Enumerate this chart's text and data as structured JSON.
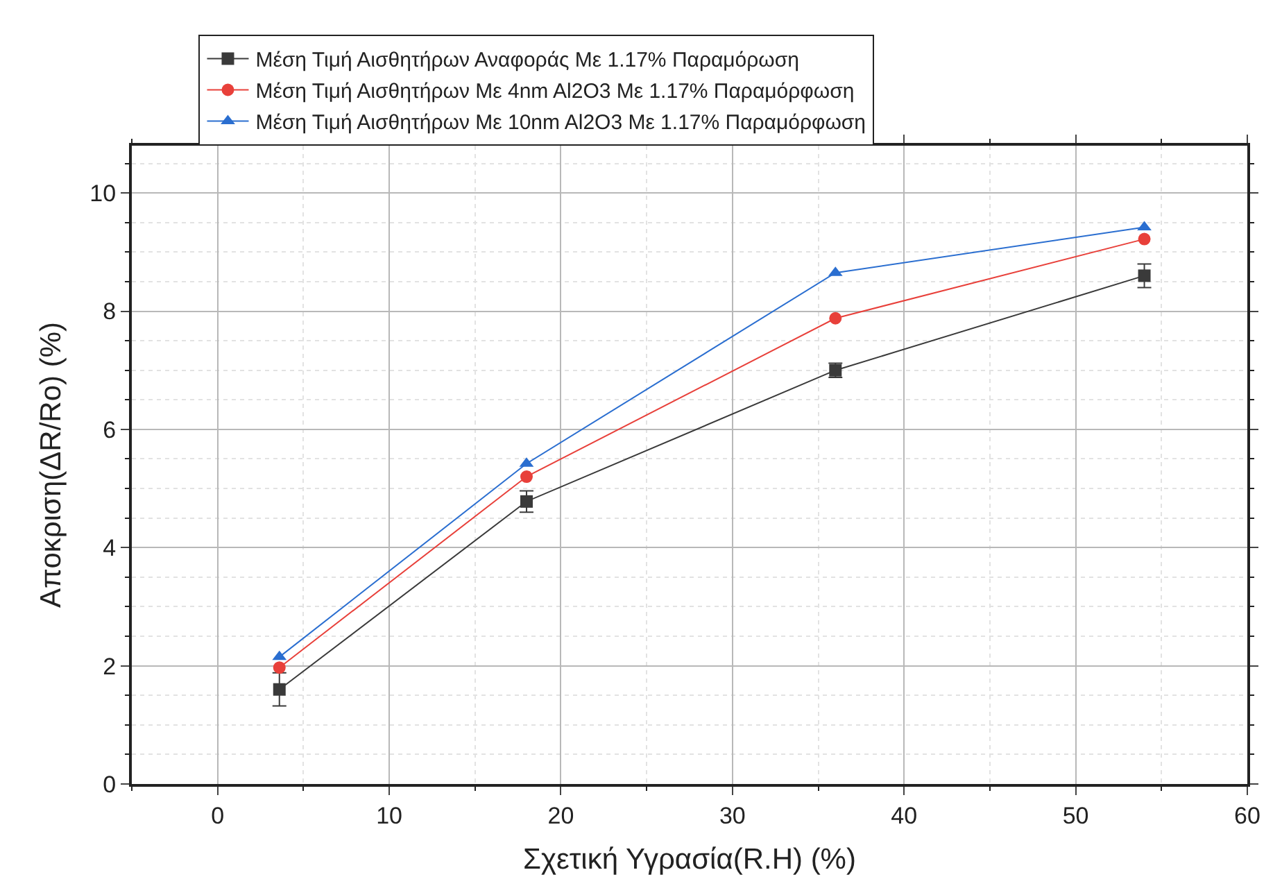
{
  "chart_data": {
    "type": "line",
    "xlabel": "Σχετική Υγρασία(R.H) (%)",
    "ylabel": "Αποκριση(ΔR/Ro) (%)",
    "x": [
      3.6,
      18,
      36,
      54
    ],
    "series": [
      {
        "name": "Μέση Τιμή Αισθητήρων Αναφοράς Με 1.17% Παραμόρωση",
        "color": "#3a3a3a",
        "marker": "square",
        "values": [
          1.6,
          4.78,
          7.0,
          8.6
        ],
        "errors": [
          0.28,
          0.18,
          0.12,
          0.2
        ]
      },
      {
        "name": "Μέση Τιμή Αισθητήρων Με 4nm Al2O3 Με 1.17% Παραμόρφωση",
        "color": "#e8403a",
        "marker": "circle",
        "values": [
          1.97,
          5.2,
          7.88,
          9.22
        ]
      },
      {
        "name": "Μέση Τιμή Αισθητήρων Με 10nm Al2O3 Με 1.17% Παραμόρφωση",
        "color": "#2a6ed0",
        "marker": "triangle",
        "values": [
          2.15,
          5.42,
          8.65,
          9.42
        ]
      }
    ],
    "xlim": [
      -5,
      60
    ],
    "xticks": [
      0,
      10,
      20,
      30,
      40,
      50,
      60
    ],
    "ylim": [
      0,
      10.8
    ],
    "yticks": [
      0,
      2,
      4,
      6,
      8,
      10
    ],
    "grid": true,
    "legend": "top left",
    "line_style": "solid"
  }
}
